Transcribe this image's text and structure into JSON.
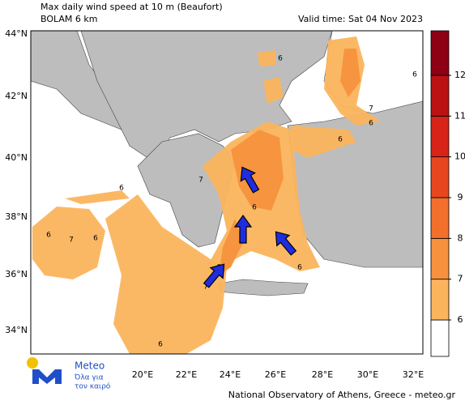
{
  "header": {
    "title": "Max daily wind speed at 10 m (Beaufort)",
    "subtitle": "BOLAM 6 km",
    "valid_time": "Valid time: Sat 04 Nov 2023"
  },
  "lat_labels": [
    "44°N",
    "42°N",
    "40°N",
    "38°N",
    "36°N",
    "34°N"
  ],
  "lon_labels": [
    "20°E",
    "22°E",
    "24°E",
    "26°E",
    "28°E",
    "30°E",
    "32°E"
  ],
  "colorbar": {
    "ticks": [
      6,
      7,
      8,
      9,
      10,
      11,
      12
    ],
    "colors": [
      "#fbb45c",
      "#f7913d",
      "#f26f2c",
      "#e8461f",
      "#d82318",
      "#bb1113",
      "#8e0014"
    ],
    "below_color": "#ffffff"
  },
  "contour_labels": [
    "6",
    "6",
    "7",
    "6",
    "6",
    "7",
    "6",
    "6",
    "7",
    "6",
    "6",
    "7",
    "6",
    "6",
    "6"
  ],
  "logo": {
    "name": "Meteo",
    "tagline_1": "Όλα για",
    "tagline_2": "τον καιρό"
  },
  "footer": "National Observatory of Athens, Greece - meteo.gr"
}
